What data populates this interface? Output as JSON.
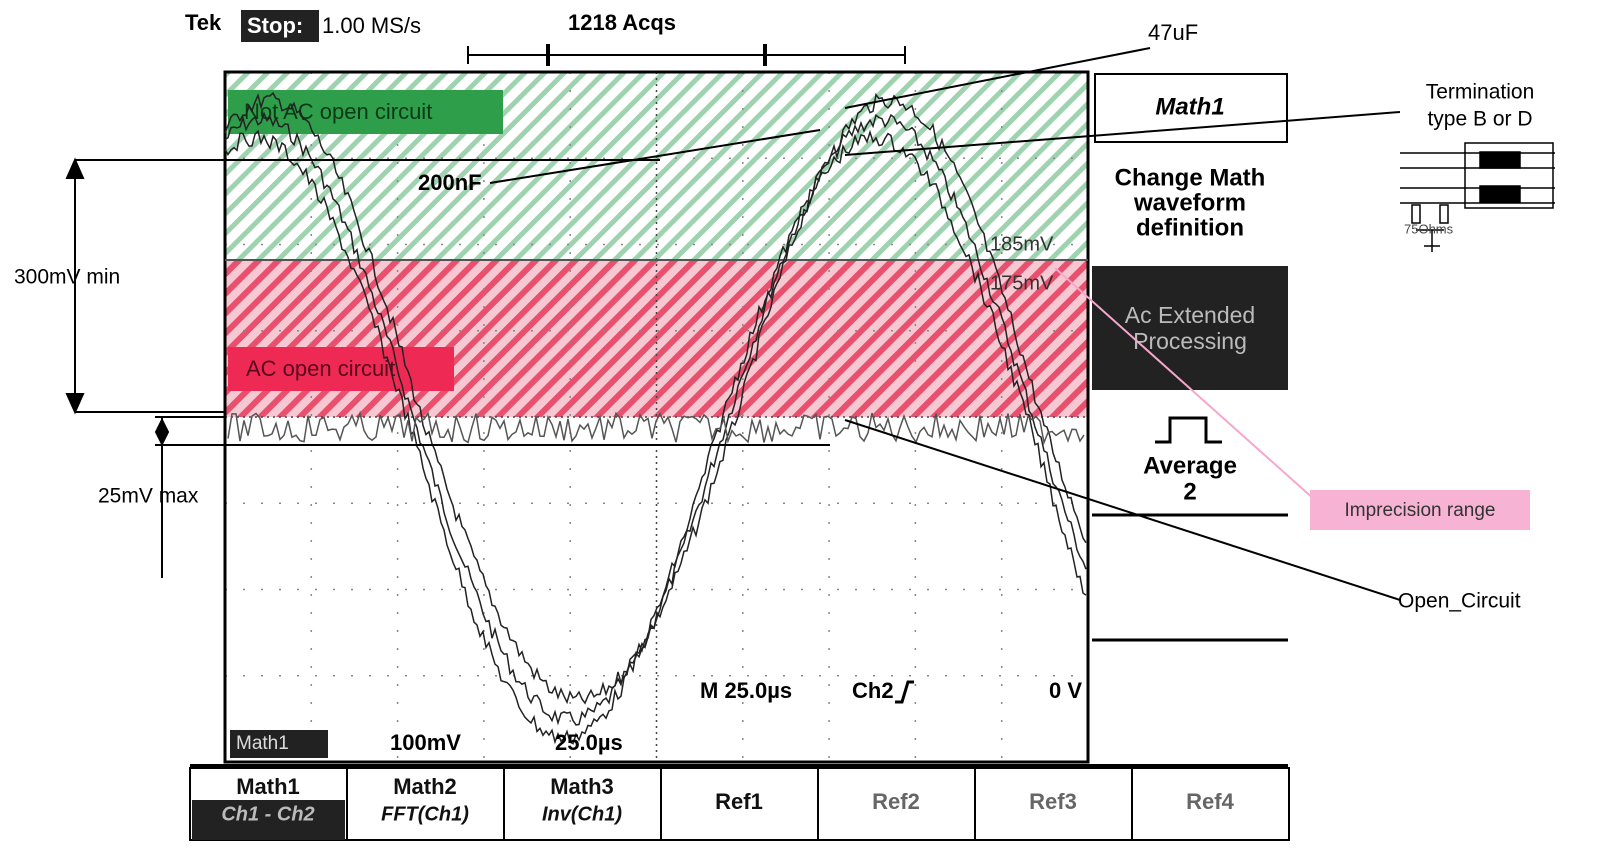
{
  "header": {
    "brand": "Tek",
    "state": "Stop:",
    "rate": "1.00 MS/s",
    "acqs": "1218 Acqs"
  },
  "zones": {
    "upper": "Not AC open circuit",
    "lower": "AC open circuit",
    "upper_level": "185mV",
    "lower_level": "175mV"
  },
  "annotations": {
    "cap_large": "47uF",
    "cap_small": "200nF",
    "termination": [
      "Termination",
      "type B or D"
    ],
    "resistor": "75Ohms",
    "min_swing": "300mV min",
    "max_noise": "25mV max",
    "imprecision": "Imprecision range",
    "open_circuit": "Open_Circuit"
  },
  "readout": {
    "timebase": "M 25.0µs",
    "trigger": "Ch2",
    "trigger_level": "0 V",
    "channel": "Math1",
    "scale": "100mV",
    "time_scale": "25.0µs"
  },
  "side_menu": {
    "title": "Math1",
    "change": [
      "Change Math",
      "waveform",
      "definition"
    ],
    "processing": [
      "Ac Extended",
      "Processing"
    ],
    "average": [
      "Average",
      "2"
    ]
  },
  "bottom_menu": [
    {
      "label": "Math1",
      "sub": "Ch1 - Ch2"
    },
    {
      "label": "Math2",
      "sub": "FFT(Ch1)"
    },
    {
      "label": "Math3",
      "sub": "Inv(Ch1)"
    },
    {
      "label": "Ref1"
    },
    {
      "label": "Ref2"
    },
    {
      "label": "Ref3"
    },
    {
      "label": "Ref4"
    }
  ]
}
